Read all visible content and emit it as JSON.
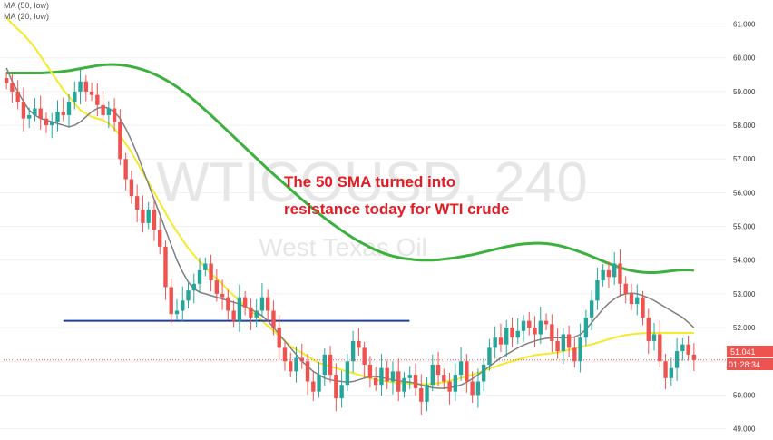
{
  "legend": {
    "ma50_label": "MA (50, low)",
    "ma20_label": "MA (20, low)"
  },
  "watermark": {
    "symbol": "WTICOUSD, 240",
    "name": "West Texas Oil"
  },
  "annotation": {
    "line1": "The 50 SMA turned into",
    "line2": "resistance today for WTI crude"
  },
  "price_tag": {
    "price": "51.041",
    "countdown": "01:28:34"
  },
  "colors": {
    "up": "#26a69a",
    "down": "#ef5350",
    "ma50": "#f5e92a",
    "ma20": "#7f7f7f",
    "ma200": "#3db03d",
    "support": "#1f3f9f",
    "annotation": "#e31b23",
    "price_tag": "#ef5350"
  },
  "chart_data": {
    "type": "candlestick",
    "title": "WTICOUSD, 240",
    "ylim": [
      48.8,
      61.5
    ],
    "y_ticks": [
      "49.000",
      "50.000",
      "51.000",
      "52.000",
      "53.000",
      "54.000",
      "55.000",
      "56.000",
      "57.000",
      "58.000",
      "59.000",
      "60.000",
      "61.000"
    ],
    "current_price": 51.041,
    "series_close": [
      59.25,
      59.0,
      58.7,
      58.2,
      58.3,
      58.5,
      58.2,
      58.0,
      58.1,
      58.4,
      58.3,
      58.7,
      59.0,
      59.3,
      59.0,
      58.9,
      58.6,
      58.3,
      58.5,
      58.1,
      57.0,
      56.4,
      55.9,
      55.5,
      55.1,
      55.5,
      54.9,
      54.4,
      53.2,
      52.4,
      52.5,
      52.8,
      53.1,
      53.3,
      53.7,
      53.9,
      53.4,
      53.0,
      52.9,
      52.5,
      52.2,
      52.9,
      52.6,
      52.3,
      52.5,
      52.9,
      52.5,
      52.0,
      51.4,
      51.0,
      50.7,
      51.1,
      51.0,
      50.4,
      50.1,
      50.6,
      51.2,
      50.6,
      49.9,
      50.3,
      51.0,
      51.6,
      51.4,
      50.9,
      50.5,
      50.3,
      50.8,
      50.4,
      50.7,
      50.1,
      50.5,
      50.6,
      50.2,
      49.8,
      50.3,
      50.9,
      50.6,
      50.4,
      50.1,
      50.6,
      51.0,
      50.4,
      50.0,
      50.4,
      50.9,
      51.4,
      51.7,
      51.5,
      52.0,
      51.7,
      51.9,
      52.2,
      52.0,
      51.8,
      52.2,
      52.1,
      51.6,
      51.3,
      51.8,
      51.4,
      51.0,
      51.7,
      52.3,
      52.8,
      53.4,
      53.7,
      53.5,
      53.9,
      53.3,
      53.0,
      52.7,
      52.9,
      52.3,
      51.6,
      51.8,
      51.0,
      50.5,
      50.8,
      51.3,
      51.5,
      51.2,
      51.04
    ],
    "ma50_low": [
      61.2,
      61.0,
      60.85,
      60.7,
      60.5,
      60.3,
      60.05,
      59.8,
      59.55,
      59.3,
      59.05,
      58.85,
      58.65,
      58.45,
      58.35,
      58.25,
      58.2,
      58.15,
      58.05,
      57.9,
      57.7,
      57.45,
      57.2,
      56.9,
      56.6,
      56.3,
      56.0,
      55.7,
      55.4,
      55.1,
      54.85,
      54.6,
      54.35,
      54.15,
      53.95,
      53.8,
      53.6,
      53.45,
      53.3,
      53.1,
      52.95,
      52.8,
      52.65,
      52.5,
      52.35,
      52.2,
      52.05,
      51.9,
      51.75,
      51.6,
      51.45,
      51.35,
      51.25,
      51.15,
      51.05,
      50.95,
      50.9,
      50.85,
      50.8,
      50.75,
      50.7,
      50.65,
      50.6,
      50.55,
      50.5,
      50.45,
      50.42,
      50.4,
      50.38,
      50.36,
      50.35,
      50.34,
      50.33,
      50.32,
      50.32,
      50.33,
      50.35,
      50.38,
      50.42,
      50.46,
      50.5,
      50.55,
      50.6,
      50.66,
      50.72,
      50.78,
      50.84,
      50.9,
      50.95,
      51.0,
      51.05,
      51.1,
      51.14,
      51.18,
      51.2,
      51.22,
      51.24,
      51.26,
      51.3,
      51.34,
      51.38,
      51.42,
      51.46,
      51.5,
      51.55,
      51.6,
      51.65,
      51.7,
      51.74,
      51.78,
      51.8,
      51.82,
      51.83,
      51.84,
      51.84,
      51.84,
      51.84,
      51.84,
      51.84,
      51.84,
      51.84,
      51.84
    ],
    "ma20_low": [
      59.7,
      59.3,
      59.0,
      58.7,
      58.45,
      58.3,
      58.2,
      58.15,
      58.1,
      58.05,
      58.0,
      57.95,
      58.0,
      58.1,
      58.25,
      58.4,
      58.5,
      58.55,
      58.5,
      58.4,
      58.2,
      57.9,
      57.55,
      57.15,
      56.7,
      56.25,
      55.8,
      55.35,
      54.9,
      54.45,
      54.0,
      53.65,
      53.35,
      53.15,
      53.05,
      53.0,
      52.95,
      52.9,
      52.85,
      52.8,
      52.75,
      52.7,
      52.62,
      52.55,
      52.45,
      52.35,
      52.2,
      52.0,
      51.8,
      51.6,
      51.4,
      51.2,
      51.0,
      50.85,
      50.7,
      50.6,
      50.5,
      50.45,
      50.42,
      50.4,
      50.38,
      50.4,
      50.45,
      50.5,
      50.55,
      50.55,
      50.52,
      50.48,
      50.45,
      50.42,
      50.4,
      50.38,
      50.35,
      50.3,
      50.25,
      50.22,
      50.2,
      50.2,
      50.22,
      50.25,
      50.3,
      50.38,
      50.48,
      50.6,
      50.72,
      50.85,
      50.98,
      51.1,
      51.2,
      51.3,
      51.4,
      51.48,
      51.55,
      51.6,
      51.65,
      51.68,
      51.7,
      51.7,
      51.7,
      51.7,
      51.72,
      51.8,
      51.95,
      52.15,
      52.35,
      52.55,
      52.72,
      52.85,
      52.95,
      53.0,
      53.02,
      53.0,
      52.95,
      52.88,
      52.8,
      52.7,
      52.6,
      52.5,
      52.4,
      52.3,
      52.15,
      52.0
    ],
    "ma200": [
      59.55,
      59.55,
      59.55,
      59.55,
      59.55,
      59.55,
      59.55,
      59.56,
      59.57,
      59.58,
      59.6,
      59.62,
      59.65,
      59.68,
      59.71,
      59.74,
      59.77,
      59.79,
      59.8,
      59.8,
      59.79,
      59.77,
      59.74,
      59.7,
      59.65,
      59.59,
      59.52,
      59.44,
      59.35,
      59.25,
      59.14,
      59.02,
      58.89,
      58.75,
      58.6,
      58.45,
      58.3,
      58.14,
      57.98,
      57.82,
      57.66,
      57.5,
      57.34,
      57.18,
      57.02,
      56.86,
      56.7,
      56.55,
      56.4,
      56.25,
      56.1,
      55.95,
      55.8,
      55.66,
      55.52,
      55.38,
      55.25,
      55.12,
      55.0,
      54.88,
      54.77,
      54.66,
      54.56,
      54.47,
      54.38,
      54.3,
      54.23,
      54.17,
      54.12,
      54.08,
      54.05,
      54.03,
      54.01,
      54.0,
      54.0,
      54.0,
      54.01,
      54.03,
      54.05,
      54.07,
      54.1,
      54.13,
      54.16,
      54.2,
      54.24,
      54.28,
      54.32,
      54.36,
      54.4,
      54.43,
      54.46,
      54.48,
      54.49,
      54.5,
      54.5,
      54.49,
      54.47,
      54.44,
      54.4,
      54.35,
      54.3,
      54.24,
      54.18,
      54.11,
      54.04,
      53.97,
      53.9,
      53.84,
      53.78,
      53.73,
      53.69,
      53.66,
      53.64,
      53.63,
      53.63,
      53.64,
      53.66,
      53.68,
      53.7,
      53.71,
      53.71,
      53.7
    ],
    "support_level": 52.2,
    "support_range_index": [
      14,
      62
    ],
    "annotations": [
      "The 50 SMA turned into",
      "resistance today for WTI crude"
    ]
  }
}
